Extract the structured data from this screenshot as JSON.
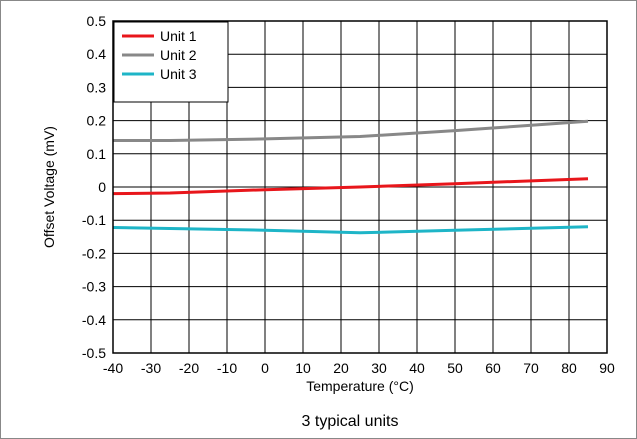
{
  "chart_data": {
    "type": "line",
    "title": "",
    "xlabel": "Temperature (°C)",
    "ylabel": "Offset Voltage (mV)",
    "caption": "3 typical units",
    "xlim": [
      -40,
      90
    ],
    "ylim": [
      -0.5,
      0.5
    ],
    "x_ticks": [
      -40,
      -30,
      -20,
      -10,
      0,
      10,
      20,
      30,
      40,
      50,
      60,
      70,
      80,
      90
    ],
    "x_tick_labels": [
      "-40",
      "-30",
      "-20",
      "-10",
      "0",
      "10",
      "20",
      "30",
      "40",
      "50",
      "60",
      "70",
      "80",
      "90"
    ],
    "y_ticks": [
      -0.5,
      -0.4,
      -0.3,
      -0.2,
      -0.1,
      0,
      0.1,
      0.2,
      0.3,
      0.4,
      0.5
    ],
    "y_tick_labels": [
      "-0.5",
      "-0.4",
      "-0.3",
      "-0.2",
      "-0.1",
      "0",
      "0.1",
      "0.2",
      "0.3",
      "0.4",
      "0.5"
    ],
    "grid": true,
    "legend_position": "top-left",
    "series": [
      {
        "name": "Unit 1",
        "color": "#e8161b",
        "x": [
          -40,
          -25,
          0,
          25,
          50,
          85
        ],
        "y": [
          -0.02,
          -0.018,
          -0.008,
          0.0,
          0.01,
          0.025
        ]
      },
      {
        "name": "Unit 2",
        "color": "#888888",
        "x": [
          -40,
          -25,
          0,
          25,
          50,
          85
        ],
        "y": [
          0.14,
          0.14,
          0.145,
          0.152,
          0.17,
          0.198
        ]
      },
      {
        "name": "Unit 3",
        "color": "#1eb5c7",
        "x": [
          -40,
          -25,
          0,
          25,
          50,
          85
        ],
        "y": [
          -0.122,
          -0.125,
          -0.13,
          -0.138,
          -0.13,
          -0.12
        ]
      }
    ]
  }
}
